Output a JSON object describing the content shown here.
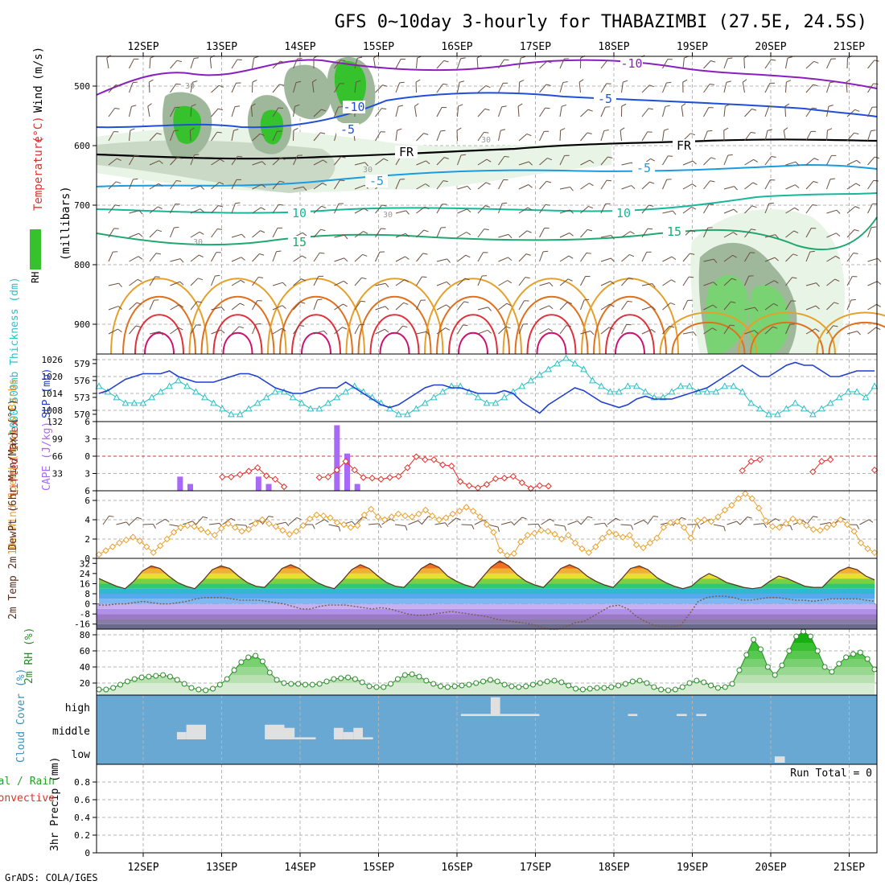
{
  "title": "GFS 0~10day 3-hourly for THABAZIMBI (27.5E, 24.5S)",
  "footer": "GrADS: COLA/IGES",
  "colors": {
    "grid": "#b4b4b4",
    "frame": "#000000",
    "rh_shade": [
      "#e8f4e6",
      "#c9d9c6",
      "#9fb89b",
      "#79d373",
      "#35c22c"
    ],
    "temp_cold": [
      "#8a1fbf",
      "#1f4fd8",
      "#1a9be0",
      "#17b89a",
      "#1fa870"
    ],
    "temp_warm": [
      "#e6a02a",
      "#e0701e",
      "#e0303a",
      "#d0106e"
    ],
    "slp": "#1f3fd0",
    "thickness": "#28c0c8",
    "lifted_index": "#e0302a",
    "cape": "#a868f8",
    "wind10": "#e8a030",
    "barb": "#6a5040",
    "rh2m": "#2a8a2a",
    "cloud_bg": "#6aa8d4",
    "cloud_block": "#e0e0e0"
  },
  "chart_data": [
    {
      "panel": "upper-air",
      "type": "heatmap",
      "title": "GFS 0~10day 3-hourly for THABAZIMBI (27.5E, 24.5S)",
      "ylabel_parts": [
        "RH (%)",
        "Temperature",
        "(°C)",
        "Wind",
        "(m/s)",
        "(millibars)"
      ],
      "x_ticks": [
        "12SEP",
        "13SEP",
        "14SEP",
        "15SEP",
        "16SEP",
        "17SEP",
        "18SEP",
        "19SEP",
        "20SEP",
        "21SEP"
      ],
      "yticks": [
        500,
        600,
        700,
        800,
        900
      ],
      "ylim": [
        950,
        450
      ],
      "temperature_labels": [
        {
          "label": "-10",
          "day": 11.3
        },
        {
          "label": "-10",
          "day": 3.25
        },
        {
          "label": "-5",
          "day": 6.95
        },
        {
          "label": "-5",
          "day": 3.9
        },
        {
          "label": "FR",
          "day": 3.55
        },
        {
          "label": "FR",
          "day": 7.45
        },
        {
          "label": "-5",
          "day": 6.5
        },
        {
          "label": "-5",
          "day": 3.45
        },
        {
          "label": "10",
          "day": 2.35
        },
        {
          "label": "10",
          "day": 6.6
        },
        {
          "label": "15",
          "day": 2.4
        },
        {
          "label": "15",
          "day": 7.3
        }
      ],
      "rh_labels": [
        "30",
        "30",
        "30",
        "30",
        "30"
      ]
    },
    {
      "panel": "slp-thickness",
      "type": "line",
      "ylabel_left": "1000-500mb Thickness (dm)",
      "ylabel_right": "SLP (mb)",
      "left_ticks": [
        570,
        573,
        576,
        579
      ],
      "right_ticks": [
        1008,
        1014,
        1020,
        1026
      ],
      "ylim_slp": [
        1004,
        1028
      ],
      "ylim_thickness": [
        568.7,
        580.7
      ],
      "series": [
        {
          "name": "SLP (mb)",
          "values": [
            1014,
            1015,
            1017,
            1019,
            1020,
            1021,
            1021,
            1021,
            1022,
            1020,
            1019,
            1018,
            1018,
            1018,
            1019,
            1020,
            1021,
            1021,
            1020,
            1018,
            1016,
            1015,
            1014,
            1014,
            1015,
            1016,
            1016,
            1016,
            1018,
            1016,
            1014,
            1012,
            1010,
            1009,
            1010,
            1012,
            1014,
            1016,
            1017,
            1017,
            1016,
            1016,
            1015,
            1014,
            1014,
            1014,
            1015,
            1014,
            1011,
            1009,
            1007,
            1010,
            1012,
            1014,
            1016,
            1015,
            1013,
            1011,
            1010,
            1009,
            1010,
            1012,
            1013,
            1012,
            1012,
            1012,
            1013,
            1014,
            1015,
            1016,
            1018,
            1020,
            1022,
            1024,
            1022,
            1020,
            1020,
            1022,
            1024,
            1025,
            1024,
            1024,
            1022,
            1020,
            1020,
            1021,
            1022,
            1022,
            1022
          ]
        },
        {
          "name": "1000-500mb Thickness (dm)",
          "values": [
            575,
            574,
            573,
            572,
            572,
            572,
            573,
            574,
            575,
            576,
            575,
            574,
            573,
            572,
            571,
            570,
            570,
            571,
            572,
            573,
            574,
            574,
            573,
            572,
            571,
            571,
            572,
            573,
            574,
            575,
            574,
            573,
            572,
            571,
            570,
            570,
            571,
            572,
            573,
            574,
            575,
            575,
            574,
            573,
            572,
            572,
            573,
            574,
            575,
            576,
            577,
            578,
            579,
            580,
            579,
            578,
            576,
            575,
            574,
            574,
            575,
            575,
            574,
            573,
            573,
            574,
            575,
            575,
            574,
            574,
            574,
            575,
            575,
            574,
            572,
            571,
            570,
            570,
            571,
            572,
            571,
            570,
            571,
            572,
            573,
            574,
            574,
            573,
            575
          ]
        }
      ]
    },
    {
      "panel": "li-cape",
      "type": "bar",
      "ylabel_left": "Lifted Index",
      "ylabel_right": "CAPE (J/kg)",
      "left_ticks": [
        -6,
        -3,
        0,
        3,
        6
      ],
      "left_tick_labels": [
        "6",
        "3",
        "0",
        "3",
        "6"
      ],
      "right_ticks": [
        33,
        66,
        99,
        132
      ],
      "series": [
        {
          "name": "Lifted Index",
          "type": "line",
          "values": [
            null,
            null,
            null,
            null,
            null,
            null,
            null,
            null,
            null,
            null,
            null,
            null,
            null,
            null,
            3.6,
            3.6,
            3.2,
            2.6,
            2.0,
            3.4,
            4.0,
            5.3,
            null,
            null,
            null,
            3.7,
            3.6,
            2.4,
            0.9,
            2.4,
            3.7,
            3.8,
            4.0,
            3.7,
            3.5,
            2.0,
            0.1,
            0.6,
            0.6,
            1.5,
            1.7,
            4.4,
            5.1,
            5.5,
            4.9,
            3.9,
            3.8,
            3.5,
            4.6,
            5.6,
            5.1,
            5.2,
            null,
            null,
            null,
            null,
            null,
            null,
            null,
            null,
            null,
            null,
            null,
            null,
            null,
            null,
            null,
            null,
            null,
            null,
            null,
            null,
            null,
            2.5,
            0.9,
            0.6,
            null,
            null,
            null,
            null,
            null,
            2.7,
            0.9,
            0.6,
            null,
            null,
            null,
            null,
            2.4
          ]
        },
        {
          "name": "CAPE (J/kg)",
          "type": "bar",
          "categories_day": [
            0.47,
            0.6,
            1.47,
            1.6,
            2.47,
            2.6,
            2.73
          ],
          "values": [
            27,
            13,
            27,
            13,
            125,
            71,
            13
          ]
        }
      ]
    },
    {
      "panel": "wind10m",
      "type": "line",
      "ylabel": "10m Wind Speed (m/s) & Barbs",
      "yticks": [
        0,
        2,
        4,
        6
      ],
      "ylim": [
        0,
        7
      ],
      "series": [
        {
          "name": "10m Wind Speed",
          "values": [
            0.4,
            0.8,
            1.2,
            1.6,
            1.9,
            2.2,
            1.8,
            1.2,
            0.6,
            1.3,
            2.0,
            2.7,
            3.2,
            3.4,
            3.3,
            3.0,
            2.7,
            2.4,
            3.1,
            3.6,
            3.2,
            2.8,
            3.0,
            3.6,
            4.0,
            3.6,
            3.3,
            2.9,
            2.5,
            2.8,
            3.4,
            4.1,
            4.5,
            4.4,
            4.2,
            3.7,
            3.5,
            3.2,
            3.4,
            4.5,
            5.1,
            4.3,
            4.0,
            4.3,
            4.6,
            4.4,
            4.3,
            4.6,
            5.0,
            4.4,
            4.0,
            4.2,
            4.6,
            4.9,
            5.3,
            4.9,
            4.3,
            3.5,
            2.7,
            0.8,
            0.3,
            0.5,
            1.7,
            2.4,
            2.6,
            2.9,
            2.8,
            2.5,
            2.0,
            2.4,
            1.6,
            1.0,
            0.6,
            1.2,
            2.1,
            2.7,
            2.5,
            2.2,
            2.4,
            1.4,
            1.1,
            1.6,
            2.1,
            3.2,
            3.7,
            3.8,
            3.2,
            2.1,
            3.9,
            4.0,
            3.8,
            4.3,
            5.0,
            5.5,
            6.2,
            6.7,
            6.2,
            5.2,
            3.9,
            3.3,
            3.2,
            3.6,
            4.1,
            3.8,
            3.4,
            3.0,
            2.9,
            3.2,
            3.5,
            4.0,
            3.5,
            2.8,
            1.6,
            1.0,
            0.6
          ]
        }
      ]
    },
    {
      "panel": "temp2m",
      "type": "area",
      "ylabel": "2m Temp 2m DewPt (6hr Min/Max) (°C)",
      "yticks": [
        -16,
        -8,
        0,
        8,
        16,
        24,
        32
      ],
      "ylim": [
        -20,
        36
      ],
      "series": [
        {
          "name": "2m Temp",
          "values": [
            20,
            17,
            14,
            12,
            18,
            26,
            30,
            28,
            22,
            17,
            14,
            12,
            19,
            27,
            30,
            28,
            22,
            17,
            14,
            13,
            20,
            28,
            31,
            28,
            22,
            17,
            14,
            12,
            19,
            27,
            31,
            28,
            22,
            17,
            14,
            13,
            20,
            28,
            32,
            29,
            22,
            18,
            15,
            13,
            21,
            29,
            34,
            30,
            23,
            18,
            15,
            13,
            20,
            28,
            31,
            28,
            22,
            18,
            15,
            13,
            20,
            28,
            30,
            27,
            21,
            17,
            14,
            12,
            14,
            20,
            24,
            21,
            17,
            15,
            13,
            12,
            13,
            18,
            22,
            20,
            17,
            14,
            13,
            13,
            20,
            26,
            29,
            27,
            22,
            19
          ]
        },
        {
          "name": "2m DewPt",
          "values": [
            -1,
            -1,
            0,
            0,
            1,
            2,
            1,
            0,
            0,
            1,
            2,
            4,
            5,
            5,
            5,
            4,
            3,
            3,
            3,
            2,
            1,
            0,
            -2,
            -4,
            -4,
            -2,
            -1,
            -1,
            -1,
            -2,
            -3,
            -4,
            -3,
            -4,
            -6,
            -8,
            -9,
            -9,
            -8,
            -7,
            -6,
            -7,
            -8,
            -9,
            -10,
            -12,
            -13,
            -14,
            -15,
            -16,
            -18,
            -20,
            -20,
            -18,
            -15,
            -14,
            -10,
            -6,
            -2,
            -1,
            -4,
            -10,
            -14,
            -17,
            -18,
            -18,
            -17,
            -8,
            2,
            5,
            6,
            6,
            5,
            3,
            3,
            4,
            5,
            5,
            4,
            3,
            3,
            2,
            3,
            4,
            4,
            4,
            4,
            3,
            2
          ]
        }
      ]
    },
    {
      "panel": "rh2m",
      "type": "area",
      "ylabel": "2m RH (%)",
      "yticks": [
        20,
        40,
        60,
        80
      ],
      "ylim": [
        5,
        87
      ],
      "series": [
        {
          "name": "2m RH",
          "values": [
            12,
            12,
            14,
            18,
            22,
            25,
            27,
            28,
            29,
            30,
            28,
            24,
            19,
            14,
            12,
            11,
            13,
            18,
            25,
            36,
            46,
            52,
            54,
            47,
            33,
            24,
            20,
            19,
            19,
            18,
            18,
            19,
            22,
            25,
            26,
            27,
            25,
            21,
            16,
            15,
            15,
            19,
            25,
            30,
            31,
            28,
            23,
            19,
            16,
            15,
            16,
            17,
            18,
            20,
            22,
            24,
            22,
            18,
            16,
            15,
            16,
            18,
            20,
            22,
            23,
            21,
            17,
            13,
            12,
            13,
            14,
            14,
            15,
            17,
            19,
            22,
            23,
            20,
            15,
            12,
            11,
            12,
            15,
            20,
            23,
            21,
            17,
            14,
            15,
            19,
            36,
            55,
            74,
            62,
            40,
            30,
            42,
            60,
            78,
            84,
            78,
            60,
            40,
            34,
            44,
            52,
            56,
            58,
            50,
            37
          ]
        }
      ]
    },
    {
      "panel": "cloud-cover",
      "type": "bar",
      "ylabel": "Cloud Cover (%)",
      "levels": [
        "high",
        "middle",
        "low"
      ],
      "blocks": [
        {
          "level": "middle",
          "day_start": 0.43,
          "day_end": 0.55,
          "value": 35
        },
        {
          "level": "middle",
          "day_start": 0.55,
          "day_end": 0.8,
          "value": 70
        },
        {
          "level": "middle",
          "day_start": 1.55,
          "day_end": 1.8,
          "value": 70
        },
        {
          "level": "middle",
          "day_start": 1.8,
          "day_end": 1.93,
          "value": 55
        },
        {
          "level": "middle",
          "day_start": 1.93,
          "day_end": 2.2,
          "value": 10
        },
        {
          "level": "middle",
          "day_start": 2.43,
          "day_end": 2.55,
          "value": 55
        },
        {
          "level": "middle",
          "day_start": 2.55,
          "day_end": 2.68,
          "value": 35
        },
        {
          "level": "middle",
          "day_start": 2.68,
          "day_end": 2.8,
          "value": 55
        },
        {
          "level": "middle",
          "day_start": 2.8,
          "day_end": 2.93,
          "value": 10
        },
        {
          "level": "high",
          "day_start": 4.05,
          "day_end": 4.43,
          "value": 10
        },
        {
          "level": "high",
          "day_start": 4.43,
          "day_end": 4.55,
          "value": 90
        },
        {
          "level": "high",
          "day_start": 4.55,
          "day_end": 5.05,
          "value": 10
        },
        {
          "level": "high",
          "day_start": 6.18,
          "day_end": 6.3,
          "value": 10
        },
        {
          "level": "high",
          "day_start": 6.8,
          "day_end": 6.93,
          "value": 10
        },
        {
          "level": "high",
          "day_start": 7.05,
          "day_end": 7.18,
          "value": 10
        },
        {
          "level": "low",
          "day_start": 8.05,
          "day_end": 8.18,
          "value": 30
        }
      ]
    },
    {
      "panel": "precip",
      "type": "bar",
      "ylabel": "3hr Precip (mm)",
      "ylabel_parts": [
        "Total / Rain",
        "Convective"
      ],
      "yticks": [
        0,
        0.2,
        0.4,
        0.6,
        0.8
      ],
      "ylim": [
        0,
        1.0
      ],
      "annotation": "Run Total = 0",
      "values": []
    }
  ]
}
